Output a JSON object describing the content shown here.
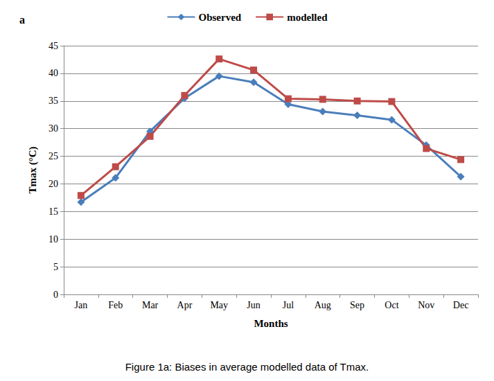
{
  "chart_data": {
    "type": "line",
    "title": "Figure 1a: Biases in average modelled data of Tmax.",
    "annotations": [
      "a"
    ],
    "x_label": "Months",
    "y_label": "Tmax (°C)",
    "categories": [
      "Jan",
      "Feb",
      "Mar",
      "Apr",
      "May",
      "Jun",
      "Jul",
      "Aug",
      "Sep",
      "Oct",
      "Nov",
      "Dec"
    ],
    "series": [
      {
        "name": "Observed",
        "color": "#4a7ebb",
        "marker": "diamond",
        "values": [
          16.7,
          21.1,
          29.5,
          35.5,
          39.5,
          38.4,
          34.4,
          33.1,
          32.4,
          31.6,
          27.0,
          21.3
        ]
      },
      {
        "name": "modelled",
        "color": "#be4b48",
        "marker": "square",
        "values": [
          17.9,
          23.1,
          28.6,
          36.0,
          42.6,
          40.6,
          35.4,
          35.3,
          35.0,
          34.9,
          26.4,
          24.4
        ]
      }
    ],
    "ylim": [
      0,
      45
    ],
    "yticks": [
      0,
      5,
      10,
      15,
      20,
      25,
      30,
      35,
      40,
      45
    ],
    "grid": true,
    "legend": "top"
  }
}
